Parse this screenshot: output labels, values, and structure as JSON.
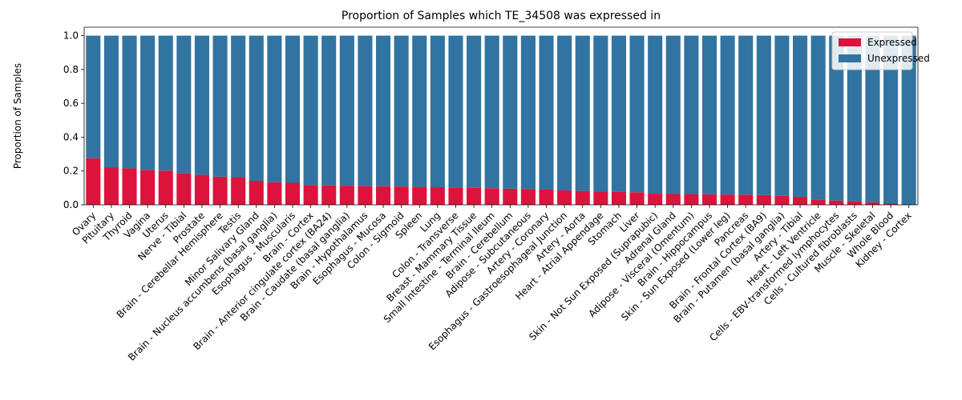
{
  "chart_data": {
    "type": "bar",
    "stacked": true,
    "title": "Proportion of Samples which TE_34508 was expressed in",
    "xlabel": "",
    "ylabel": "Proportion of Samples",
    "ylim": [
      0,
      1.05
    ],
    "yticks": [
      "0.0",
      "0.2",
      "0.4",
      "0.6",
      "0.8",
      "1.0"
    ],
    "legend_position": "top-right",
    "grid": false,
    "categories": [
      "Ovary",
      "Pituitary",
      "Thyroid",
      "Vagina",
      "Uterus",
      "Nerve - Tibial",
      "Prostate",
      "Brain - Cerebellar Hemisphere",
      "Testis",
      "Minor Salivary Gland",
      "Brain - Nucleus accumbens (basal ganglia)",
      "Esophagus - Muscularis",
      "Brain - Cortex",
      "Brain - Anterior cingulate cortex (BA24)",
      "Brain - Caudate (basal ganglia)",
      "Brain - Hypothalamus",
      "Esophagus - Mucosa",
      "Colon - Sigmoid",
      "Spleen",
      "Lung",
      "Colon - Transverse",
      "Breast - Mammary Tissue",
      "Small Intestine - Terminal Ileum",
      "Brain - Cerebellum",
      "Adipose - Subcutaneous",
      "Artery - Coronary",
      "Esophagus - Gastroesophageal Junction",
      "Artery - Aorta",
      "Heart - Atrial Appendage",
      "Stomach",
      "Liver",
      "Skin - Not Sun Exposed (Suprapubic)",
      "Adrenal Gland",
      "Adipose - Visceral (Omentum)",
      "Brain - Hippocampus",
      "Skin - Sun Exposed (Lower leg)",
      "Pancreas",
      "Brain - Frontal Cortex (BA9)",
      "Brain - Putamen (basal ganglia)",
      "Artery - Tibial",
      "Heart - Left Ventricle",
      "Cells - EBV-transformed lymphocytes",
      "Cells - Cultured fibroblasts",
      "Muscle - Skeletal",
      "Whole Blood",
      "Kidney - Cortex"
    ],
    "series": [
      {
        "name": "Expressed",
        "color": "#dc143c",
        "values": [
          0.275,
          0.222,
          0.215,
          0.207,
          0.202,
          0.186,
          0.177,
          0.166,
          0.163,
          0.142,
          0.133,
          0.13,
          0.117,
          0.115,
          0.113,
          0.112,
          0.11,
          0.108,
          0.106,
          0.104,
          0.103,
          0.101,
          0.098,
          0.095,
          0.093,
          0.09,
          0.085,
          0.082,
          0.08,
          0.076,
          0.074,
          0.066,
          0.064,
          0.064,
          0.062,
          0.061,
          0.06,
          0.058,
          0.053,
          0.047,
          0.032,
          0.025,
          0.022,
          0.015,
          0.007,
          0.0
        ]
      },
      {
        "name": "Unexpressed",
        "color": "#3274a1",
        "values": [
          0.725,
          0.778,
          0.785,
          0.793,
          0.798,
          0.814,
          0.823,
          0.834,
          0.837,
          0.858,
          0.867,
          0.87,
          0.883,
          0.885,
          0.887,
          0.888,
          0.89,
          0.892,
          0.894,
          0.896,
          0.897,
          0.899,
          0.902,
          0.905,
          0.907,
          0.91,
          0.915,
          0.918,
          0.92,
          0.924,
          0.926,
          0.934,
          0.936,
          0.936,
          0.938,
          0.939,
          0.94,
          0.942,
          0.947,
          0.953,
          0.968,
          0.975,
          0.978,
          0.985,
          0.993,
          1.0
        ]
      }
    ]
  }
}
